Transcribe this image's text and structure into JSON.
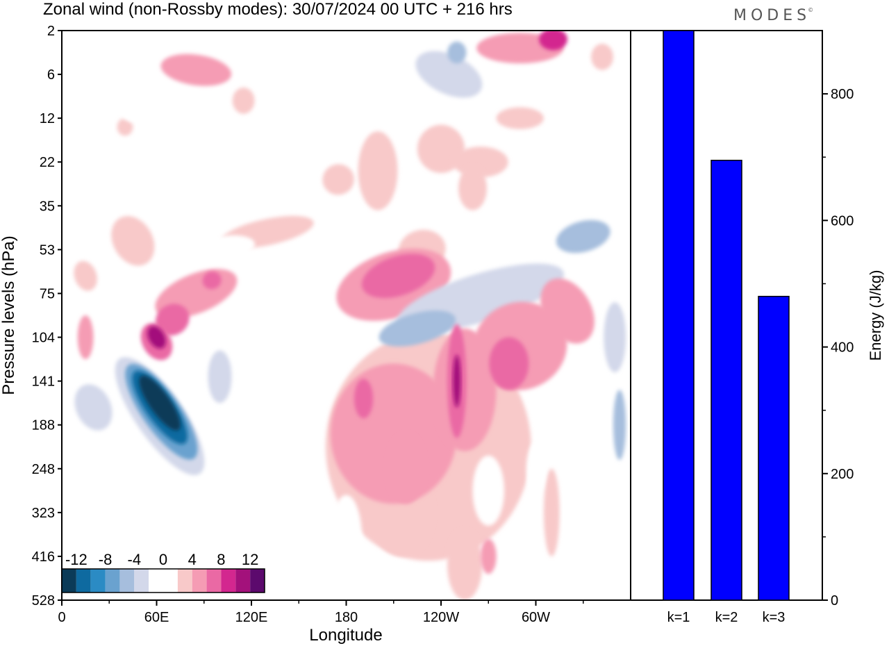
{
  "title": "Zonal wind (non-Rossby modes):  30/07/2024  00 UTC  + 216 hrs",
  "logo": "MODES",
  "logo_mark": "©",
  "chart_data": [
    {
      "type": "heatmap",
      "title": "Zonal wind (non-Rossby modes):  30/07/2024  00 UTC  + 216 hrs",
      "xlabel": "Longitude",
      "ylabel": "Pressure levels (hPa)",
      "x_ticks": [
        "0",
        "60E",
        "120E",
        "180",
        "120W",
        "60W"
      ],
      "x_tick_degrees": [
        0,
        60,
        120,
        180,
        240,
        300
      ],
      "xlim": [
        0,
        360
      ],
      "y_ticks": [
        "2",
        "6",
        "12",
        "22",
        "35",
        "53",
        "75",
        "104",
        "141",
        "188",
        "248",
        "323",
        "416",
        "528"
      ],
      "y_scale": "level index",
      "colorbar": {
        "labels": [
          "-12",
          "-8",
          "-4",
          "0",
          "4",
          "8",
          "12"
        ],
        "levels": [
          -14,
          -12,
          -10,
          -8,
          -6,
          -4,
          -2,
          0,
          2,
          4,
          6,
          8,
          10,
          12,
          14
        ],
        "colors": [
          "#0b3b58",
          "#0e6aa0",
          "#2b8bc4",
          "#6aa2cf",
          "#a6bedd",
          "#d3d8ea",
          "#ffffff",
          "#ffffff",
          "#f8c9c9",
          "#f59cb4",
          "#ea69a4",
          "#d3278f",
          "#a3117b",
          "#5c0a6d"
        ]
      },
      "features": [
        {
          "lon": 62,
          "level": 8.6,
          "value": -14
        },
        {
          "lon": 60,
          "level": 7.0,
          "value": 10
        },
        {
          "lon": 250,
          "level": 8.0,
          "value": 10
        },
        {
          "lon": 283,
          "level": 7.6,
          "value": 8
        },
        {
          "lon": 213,
          "level": 5.7,
          "value": 6
        },
        {
          "lon": 222,
          "level": 6.0,
          "value": -6
        },
        {
          "lon": 330,
          "level": 5.0,
          "value": -6
        },
        {
          "lon": 311,
          "level": 0.1,
          "value": 10
        },
        {
          "lon": 191,
          "level": 8.4,
          "value": 6
        }
      ]
    },
    {
      "type": "bar",
      "categories": [
        "k=1",
        "k=2",
        "k=3"
      ],
      "values": [
        900,
        695,
        480
      ],
      "ylabel": "Energy (J/kg)",
      "y_ticks": [
        0,
        200,
        400,
        600,
        800
      ],
      "ylim": [
        0,
        900
      ],
      "bar_color": "#0000ff"
    }
  ]
}
